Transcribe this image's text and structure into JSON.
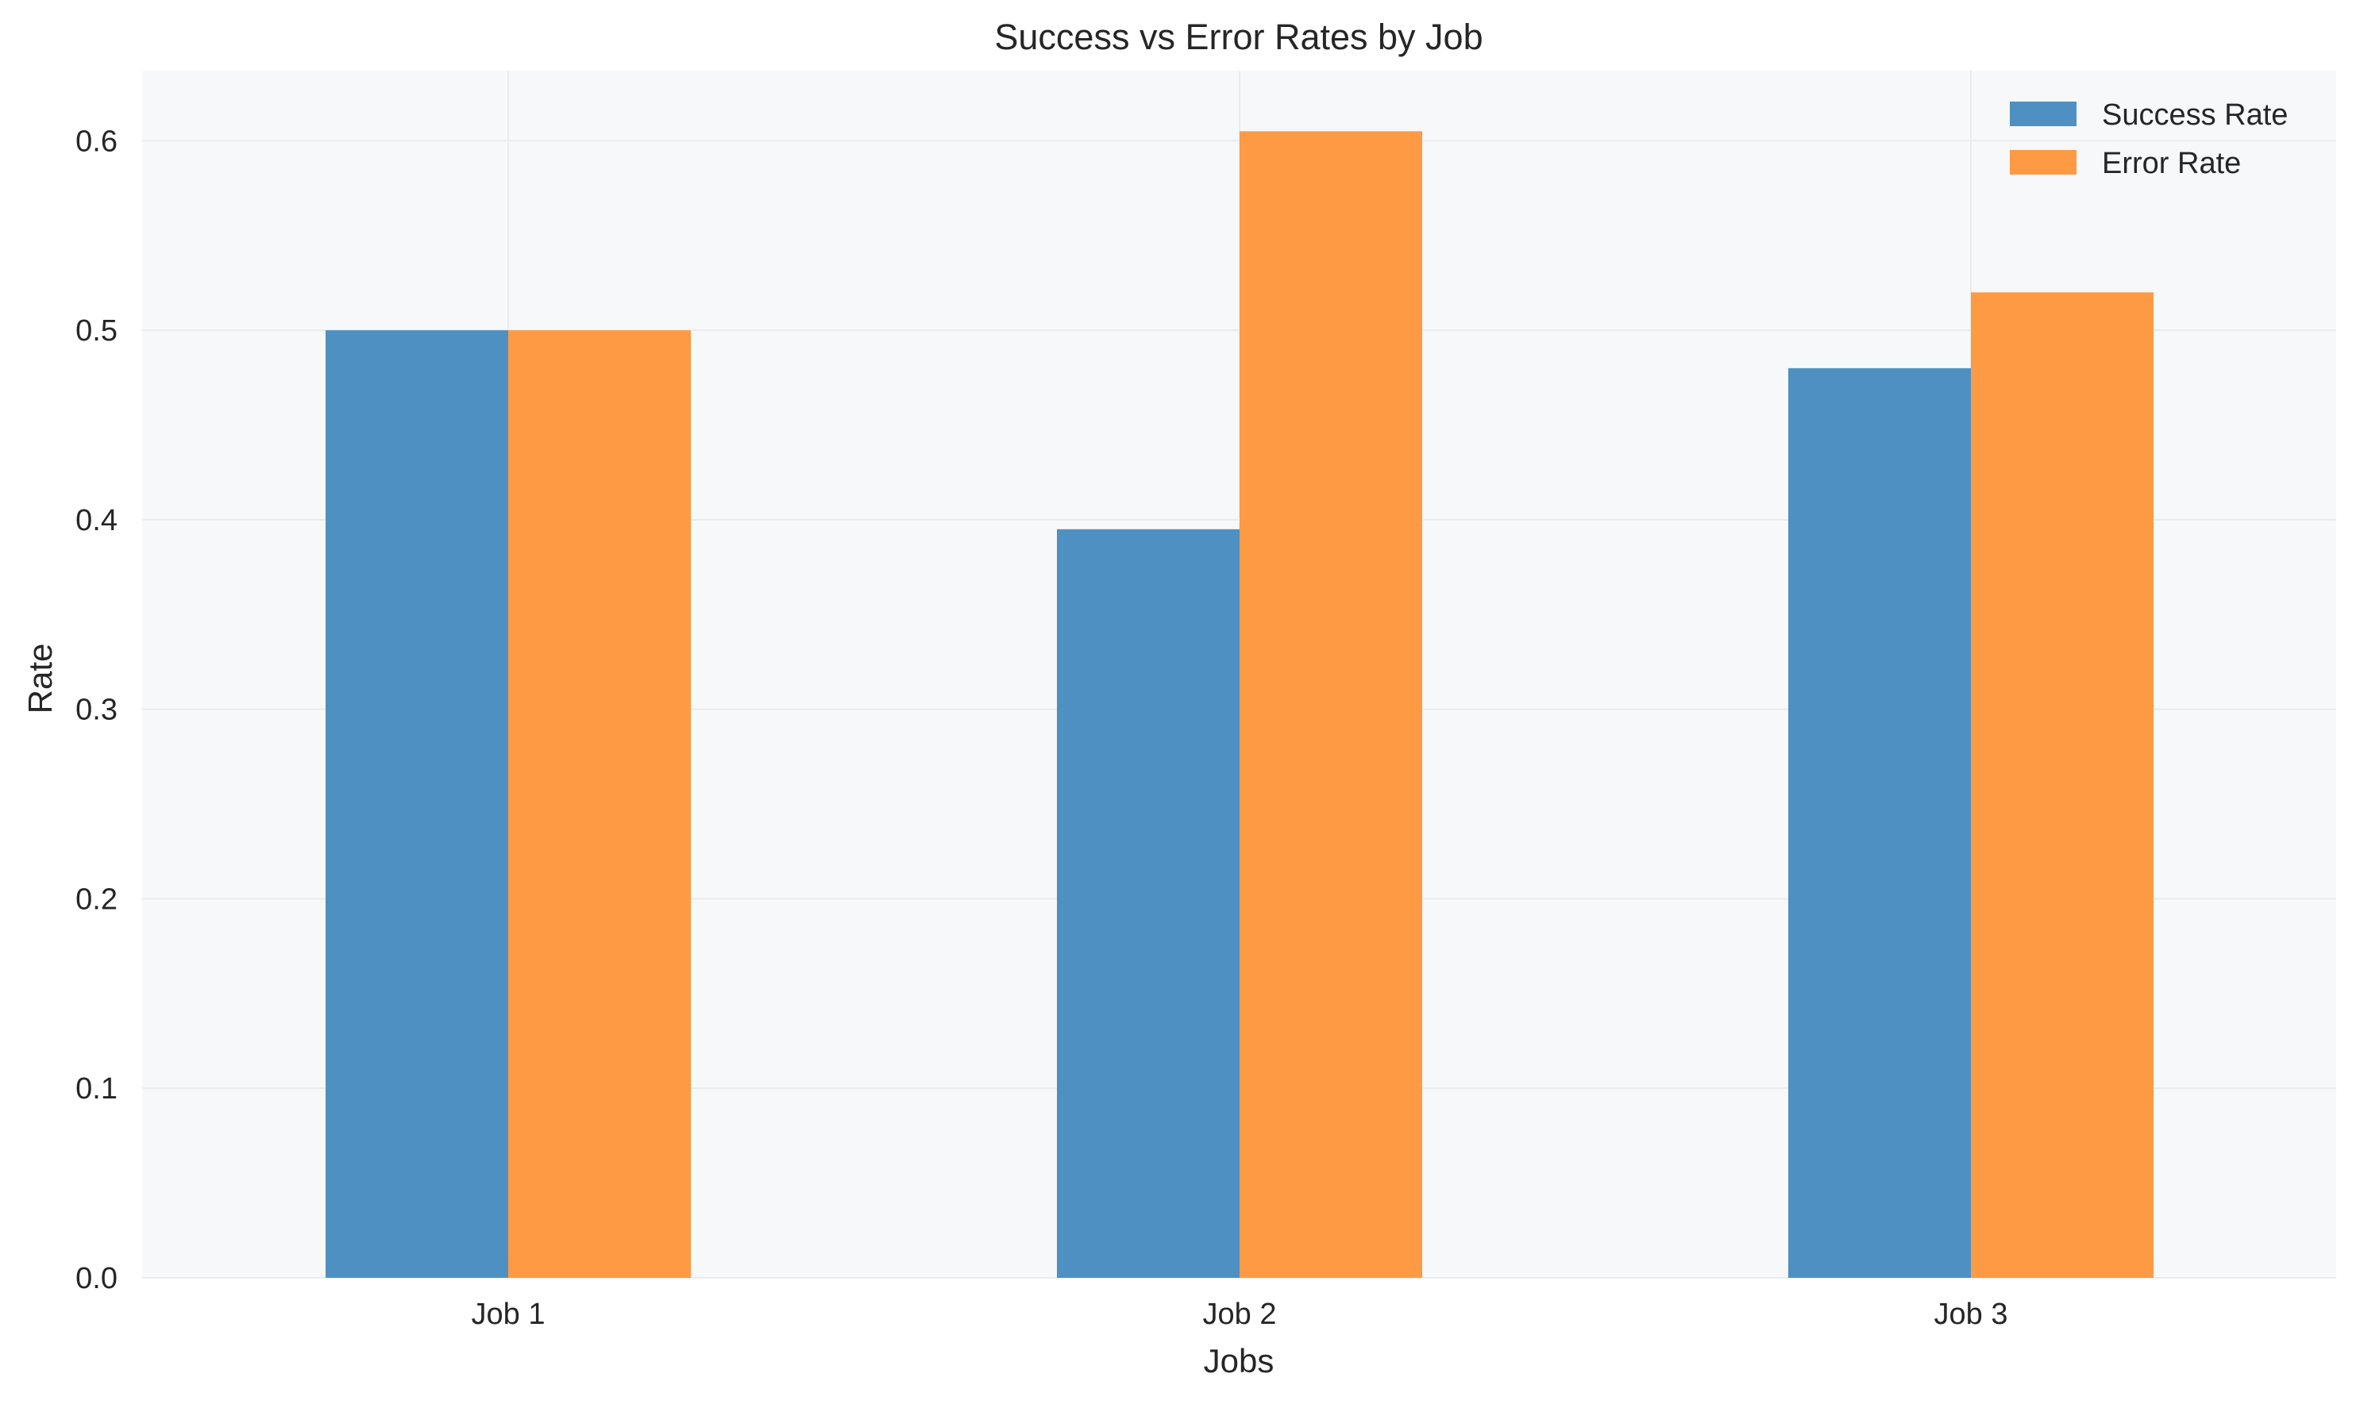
{
  "chart_data": {
    "type": "bar",
    "title": "Success vs Error Rates by Job",
    "xlabel": "Jobs",
    "ylabel": "Rate",
    "categories": [
      "Job 1",
      "Job 2",
      "Job 3"
    ],
    "series": [
      {
        "name": "Success Rate",
        "values": [
          0.5,
          0.395,
          0.48
        ],
        "color": "#4f90c3"
      },
      {
        "name": "Error Rate",
        "values": [
          0.5,
          0.605,
          0.52
        ],
        "color": "#fd9a43"
      }
    ],
    "ylim": [
      0,
      0.637
    ],
    "yticks": [
      "0.0",
      "0.1",
      "0.2",
      "0.3",
      "0.4",
      "0.5",
      "0.6"
    ],
    "grid": true,
    "legend_position": "top-right",
    "plot_background": "#f7f8fa"
  }
}
